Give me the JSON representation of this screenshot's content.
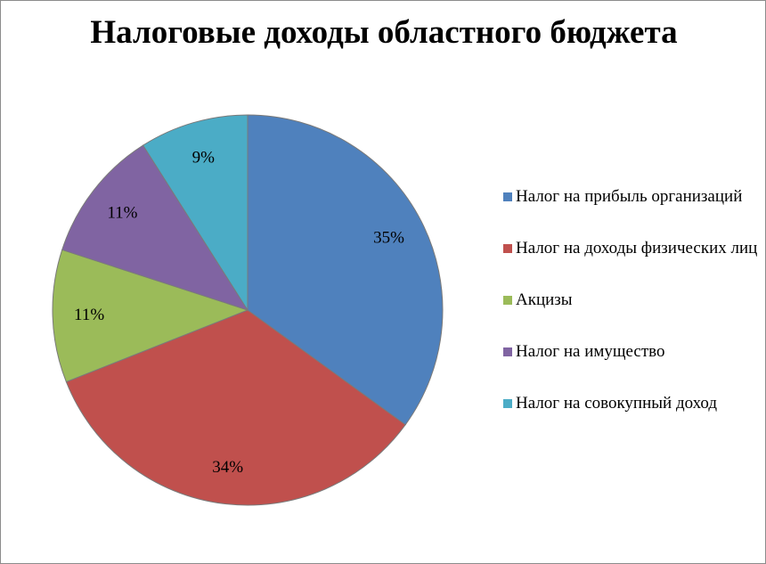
{
  "chart_data": {
    "type": "pie",
    "title": "Налоговые доходы областного бюджета",
    "categories": [
      "Налог на прибыль организаций",
      "Налог на доходы физических лиц",
      "Акцизы",
      "Налог на имущество",
      "Налог на совокупный доход"
    ],
    "values": [
      35,
      34,
      11,
      11,
      9
    ],
    "data_labels": [
      "35%",
      "34%",
      "11%",
      "11%",
      "9%"
    ],
    "colors": [
      "#4f81bd",
      "#c0504d",
      "#9bbb59",
      "#8064a2",
      "#4bacc6"
    ],
    "legend_position": "right",
    "start_angle": "12 o'clock",
    "direction": "clockwise"
  }
}
